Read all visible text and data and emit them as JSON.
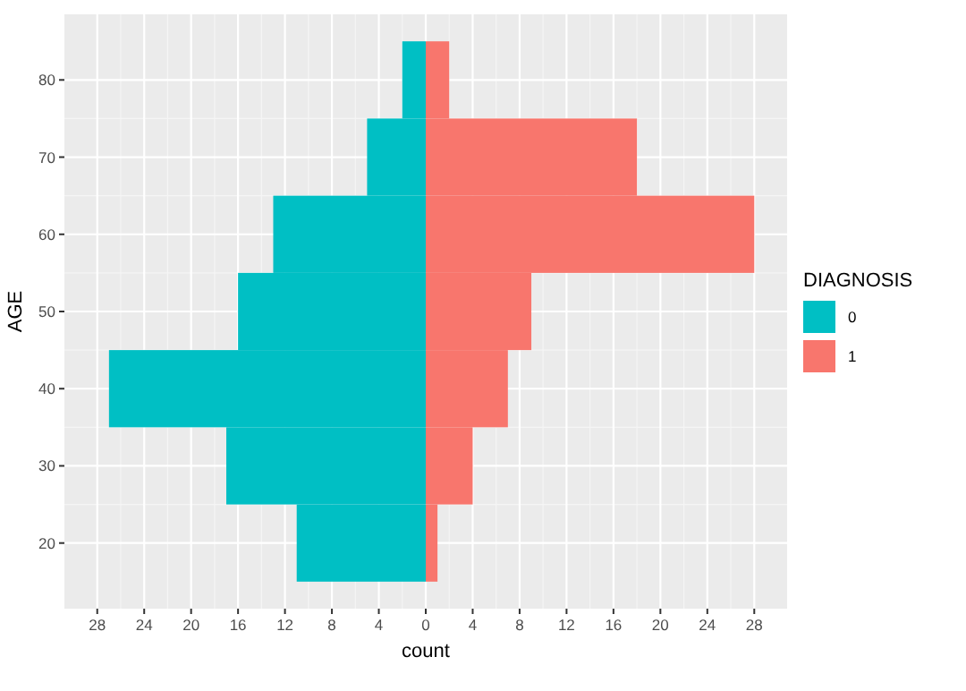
{
  "chart_data": {
    "type": "bar",
    "orientation": "horizontal",
    "xlabel": "count",
    "ylabel": "AGE",
    "legend_title": "DIAGNOSIS",
    "legend": "right",
    "grid": true,
    "stacked": true,
    "x": [
      20,
      30,
      40,
      50,
      60,
      70,
      80
    ],
    "series": [
      {
        "name": "0",
        "color": "#00bfc4",
        "values": [
          -11,
          -17,
          -27,
          -16,
          -13,
          -5,
          -2
        ]
      },
      {
        "name": "1",
        "color": "#f8766d",
        "values": [
          1,
          4,
          7,
          9,
          28,
          18,
          2
        ]
      }
    ],
    "xlim": [
      -30.8,
      30.8
    ],
    "xticks": [
      {
        "value": -28,
        "label": "28"
      },
      {
        "value": -24,
        "label": "24"
      },
      {
        "value": -20,
        "label": "20"
      },
      {
        "value": -16,
        "label": "16"
      },
      {
        "value": -12,
        "label": "12"
      },
      {
        "value": -8,
        "label": "8"
      },
      {
        "value": -4,
        "label": "4"
      },
      0,
      4,
      8,
      12,
      16,
      20,
      24,
      28
    ],
    "ylim": [
      11.5,
      88.5
    ],
    "yticks": [
      20,
      30,
      40,
      50,
      60,
      70,
      80
    ]
  }
}
